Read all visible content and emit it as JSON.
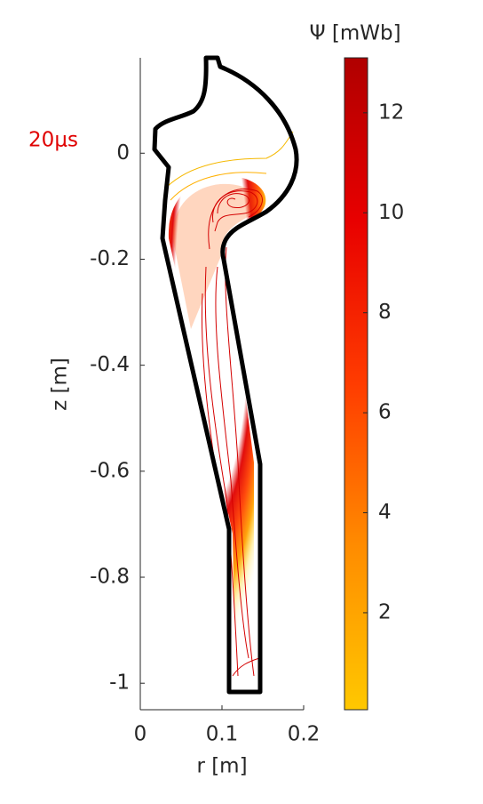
{
  "chart_data": {
    "type": "contour",
    "title": "Ψ [mWb]",
    "annotation": "20μs",
    "xlabel": "r [m]",
    "ylabel": "z [m]",
    "xlim": [
      0,
      0.2
    ],
    "xticks": [
      0,
      0.1,
      0.2
    ],
    "ylim": [
      -1.05,
      0.18
    ],
    "yticks": [
      -1,
      -0.8,
      -0.6,
      -0.4,
      -0.2,
      0
    ],
    "clim": [
      0.06,
      13.1
    ],
    "cticks": [
      2,
      4,
      6,
      8,
      10,
      12
    ],
    "colormap": [
      "#ffc800",
      "#ff8c00",
      "#ff3c00",
      "#e80000",
      "#b00000"
    ],
    "annotation_color": "#e00000"
  }
}
